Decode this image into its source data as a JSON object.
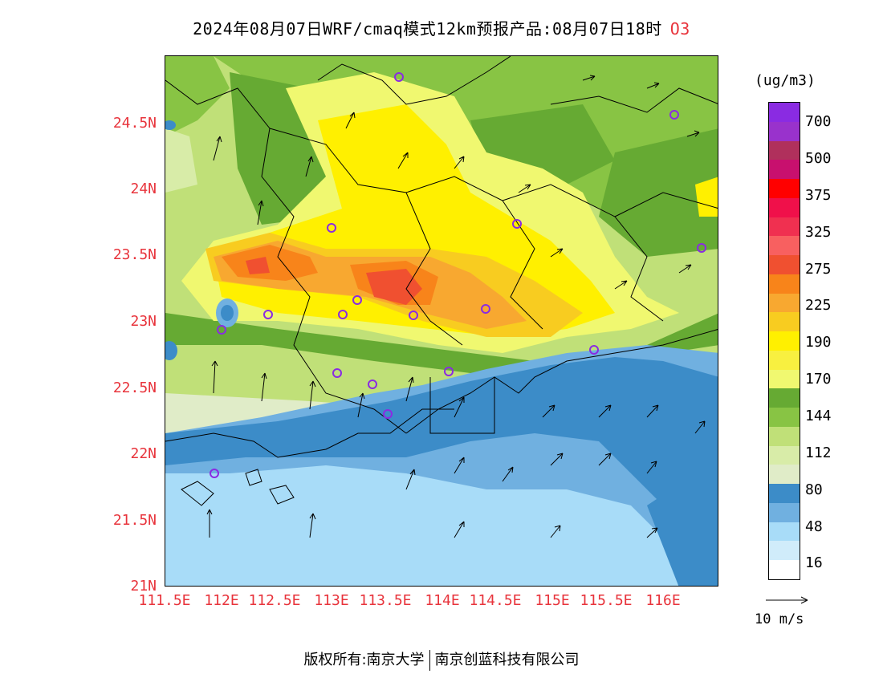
{
  "title": {
    "text": "2024年08月07日WRF/cmaq模式12km预报产品:08月07日18时",
    "pollutant": "O3"
  },
  "axes": {
    "lat_ticks": [
      "24.5N",
      "24N",
      "23.5N",
      "23N",
      "22.5N",
      "22N",
      "21.5N",
      "21N"
    ],
    "lon_ticks": [
      "111.5E",
      "112E",
      "112.5E",
      "113E",
      "113.5E",
      "114E",
      "114.5E",
      "115E",
      "115.5E",
      "116E"
    ]
  },
  "legend": {
    "unit": "(ug/m3)",
    "tick_labels": [
      "700",
      "500",
      "375",
      "325",
      "275",
      "225",
      "190",
      "170",
      "144",
      "112",
      "80",
      "48",
      "16"
    ],
    "colors_top_to_bottom": [
      "#8a2be2",
      "#9932cc",
      "#b0305c",
      "#c8106e",
      "#ff0000",
      "#f0104a",
      "#f03050",
      "#f86060",
      "#f05030",
      "#f8841a",
      "#f8a830",
      "#f8cc20",
      "#fff000",
      "#f8f040",
      "#f0f870",
      "#66aa33",
      "#88c444",
      "#c0e078",
      "#d8eca8",
      "#e0ecc8",
      "#3c8cc8",
      "#70b0e0",
      "#a8dcf8",
      "#d0ecfa",
      "#ffffff"
    ]
  },
  "wind_reference": "10 m/s",
  "footer": {
    "left": "版权所有:南京大学",
    "right": "南京创蓝科技有限公司"
  },
  "colors": {
    "axis_text": "#e8343c",
    "station_marker": "#8a2be2"
  }
}
